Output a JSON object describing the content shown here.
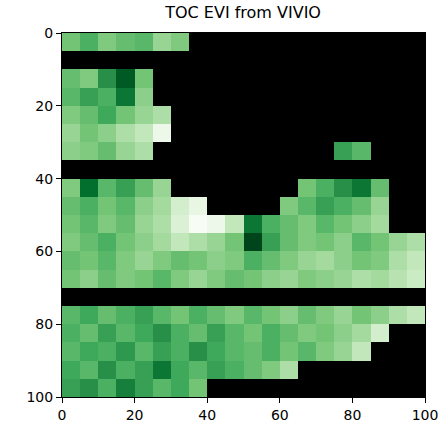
{
  "chart_data": {
    "type": "heatmap",
    "title": "TOC EVI from VIVIO",
    "x": [
      2.5,
      7.5,
      12.5,
      17.5,
      22.5,
      27.5,
      32.5,
      37.5,
      42.5,
      47.5,
      52.5,
      57.5,
      62.5,
      67.5,
      72.5,
      77.5,
      82.5,
      87.5,
      92.5,
      97.5
    ],
    "y": [
      2.5,
      7.5,
      12.5,
      17.5,
      22.5,
      27.5,
      32.5,
      37.5,
      42.5,
      47.5,
      52.5,
      57.5,
      62.5,
      67.5,
      72.5,
      77.5,
      82.5,
      87.5,
      92.5,
      97.5
    ],
    "xlim": [
      0,
      100
    ],
    "ylim": [
      100,
      0
    ],
    "xticks": [
      0,
      20,
      40,
      60,
      80,
      100
    ],
    "yticks": [
      0,
      20,
      40,
      60,
      80,
      100
    ],
    "cells": [
      [
        0.45,
        0.48,
        0.44,
        0.46,
        0.47,
        0.42,
        0.44,
        null,
        null,
        null,
        null,
        null,
        null,
        null,
        null,
        null,
        null,
        null,
        null,
        null
      ],
      [
        null,
        null,
        null,
        null,
        null,
        null,
        null,
        null,
        null,
        null,
        null,
        null,
        null,
        null,
        null,
        null,
        null,
        null,
        null,
        null
      ],
      [
        0.46,
        0.44,
        0.52,
        0.58,
        0.45,
        null,
        null,
        null,
        null,
        null,
        null,
        null,
        null,
        null,
        null,
        null,
        null,
        null,
        null,
        null
      ],
      [
        0.47,
        0.5,
        0.48,
        0.55,
        0.43,
        null,
        null,
        null,
        null,
        null,
        null,
        null,
        null,
        null,
        null,
        null,
        null,
        null,
        null,
        null
      ],
      [
        0.44,
        0.46,
        0.49,
        0.45,
        0.42,
        0.4,
        null,
        null,
        null,
        null,
        null,
        null,
        null,
        null,
        null,
        null,
        null,
        null,
        null,
        null
      ],
      [
        0.42,
        0.45,
        0.43,
        0.4,
        0.38,
        0.32,
        null,
        null,
        null,
        null,
        null,
        null,
        null,
        null,
        null,
        null,
        null,
        null,
        null,
        null
      ],
      [
        0.43,
        0.44,
        0.46,
        0.42,
        0.4,
        null,
        null,
        null,
        null,
        null,
        null,
        null,
        null,
        null,
        null,
        0.5,
        0.47,
        null,
        null,
        null
      ],
      [
        null,
        null,
        null,
        null,
        null,
        null,
        null,
        null,
        null,
        null,
        null,
        null,
        null,
        null,
        null,
        null,
        null,
        null,
        null,
        null
      ],
      [
        0.44,
        0.56,
        0.47,
        0.5,
        0.46,
        0.42,
        null,
        null,
        null,
        null,
        null,
        null,
        null,
        0.45,
        0.48,
        0.52,
        0.55,
        0.46,
        null,
        null
      ],
      [
        0.46,
        0.48,
        0.45,
        0.47,
        0.43,
        0.41,
        0.36,
        0.33,
        null,
        null,
        null,
        null,
        0.44,
        0.47,
        0.5,
        0.48,
        0.46,
        0.42,
        null,
        null
      ],
      [
        0.45,
        0.47,
        0.44,
        0.46,
        0.42,
        0.4,
        0.35,
        0.3,
        0.32,
        0.38,
        0.55,
        0.48,
        0.46,
        0.44,
        0.47,
        0.45,
        0.43,
        0.41,
        null,
        null
      ],
      [
        0.44,
        0.46,
        0.48,
        0.45,
        0.43,
        0.41,
        0.38,
        0.4,
        0.42,
        0.45,
        0.6,
        0.5,
        0.46,
        0.44,
        0.45,
        0.43,
        0.47,
        0.45,
        0.42,
        0.4
      ],
      [
        0.46,
        0.45,
        0.47,
        0.44,
        0.42,
        0.44,
        0.46,
        0.45,
        0.43,
        0.44,
        0.48,
        0.46,
        0.44,
        0.42,
        0.41,
        0.43,
        0.45,
        0.44,
        0.4,
        0.38
      ],
      [
        0.45,
        0.43,
        0.46,
        0.44,
        0.45,
        0.47,
        0.44,
        0.42,
        0.44,
        0.46,
        0.45,
        0.43,
        0.42,
        0.44,
        0.43,
        0.42,
        0.4,
        0.41,
        0.39,
        0.37
      ],
      [
        null,
        null,
        null,
        null,
        null,
        null,
        null,
        null,
        null,
        null,
        null,
        null,
        null,
        null,
        null,
        null,
        null,
        null,
        null,
        null
      ],
      [
        0.47,
        0.49,
        0.46,
        0.48,
        0.5,
        0.47,
        0.45,
        0.48,
        0.46,
        0.44,
        0.47,
        0.45,
        0.43,
        0.46,
        0.44,
        0.42,
        0.45,
        0.43,
        0.4,
        0.38
      ],
      [
        0.48,
        0.46,
        0.5,
        0.47,
        0.49,
        0.52,
        0.48,
        0.46,
        0.5,
        0.47,
        0.45,
        0.48,
        0.46,
        0.44,
        0.45,
        0.43,
        0.41,
        0.36,
        null,
        null
      ],
      [
        0.47,
        0.49,
        0.48,
        0.51,
        0.47,
        0.5,
        0.48,
        0.52,
        0.49,
        0.47,
        0.46,
        0.48,
        0.45,
        0.47,
        0.44,
        0.42,
        0.38,
        null,
        null,
        null
      ],
      [
        0.49,
        0.47,
        0.52,
        0.48,
        0.5,
        0.55,
        0.49,
        0.47,
        0.5,
        0.48,
        0.46,
        0.44,
        0.4,
        null,
        null,
        null,
        null,
        null,
        null,
        null
      ],
      [
        0.5,
        0.52,
        0.48,
        0.54,
        0.5,
        0.47,
        0.49,
        0.45,
        null,
        null,
        null,
        null,
        null,
        null,
        null,
        null,
        null,
        null,
        null,
        null
      ]
    ]
  }
}
